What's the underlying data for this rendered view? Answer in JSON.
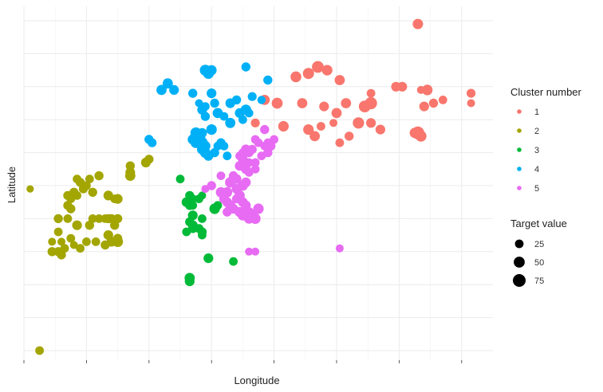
{
  "chart_data": {
    "type": "scatter",
    "xlabel": "Longitude",
    "ylabel": "Latitude",
    "xlim": [
      0,
      150
    ],
    "ylim": [
      0,
      100
    ],
    "x_ticks": [
      0,
      20,
      40,
      60,
      80,
      100,
      120,
      140
    ],
    "y_ticks": [
      0,
      10,
      20,
      30,
      40,
      50,
      60,
      70,
      80,
      90,
      100
    ],
    "grid": true,
    "show_tick_labels": false,
    "legend_placement": "right",
    "legend_color_title": "Cluster number",
    "legend_size_title": "Target value",
    "size_legend": [
      {
        "label": "25",
        "value": 25
      },
      {
        "label": "50",
        "value": 50
      },
      {
        "label": "75",
        "value": 75
      }
    ],
    "series": [
      {
        "name": "1",
        "color": "#F8766D",
        "points": [
          [
            126,
            99,
            42
          ],
          [
            87,
            83,
            48
          ],
          [
            91,
            84,
            52
          ],
          [
            97,
            85,
            45
          ],
          [
            94,
            86,
            60
          ],
          [
            101,
            82,
            40
          ],
          [
            111,
            78,
            25
          ],
          [
            119,
            80,
            35
          ],
          [
            129,
            79,
            45
          ],
          [
            143,
            78,
            28
          ],
          [
            134,
            76,
            25
          ],
          [
            131,
            75,
            30
          ],
          [
            128,
            74,
            35
          ],
          [
            111,
            75,
            65
          ],
          [
            103,
            75,
            40
          ],
          [
            96,
            74,
            35
          ],
          [
            89,
            75,
            40
          ],
          [
            81,
            75,
            50
          ],
          [
            100,
            72,
            40
          ],
          [
            107,
            69,
            55
          ],
          [
            111,
            69,
            35
          ],
          [
            99,
            69,
            20
          ],
          [
            95,
            68,
            25
          ],
          [
            91,
            67,
            45
          ],
          [
            114,
            67,
            35
          ],
          [
            125,
            66,
            40
          ],
          [
            126,
            66,
            75
          ],
          [
            127,
            65,
            50
          ],
          [
            104,
            65,
            30
          ],
          [
            93,
            65,
            40
          ],
          [
            83,
            68,
            45
          ],
          [
            77,
            76,
            40
          ],
          [
            74,
            69,
            28
          ],
          [
            121,
            80,
            35
          ],
          [
            127,
            79,
            20
          ],
          [
            143,
            75,
            20
          ],
          [
            101,
            63,
            25
          ],
          [
            109,
            74,
            60
          ]
        ]
      },
      {
        "name": "2",
        "color": "#A3A500",
        "points": [
          [
            2,
            49,
            15
          ],
          [
            21,
            52,
            25
          ],
          [
            24,
            53,
            30
          ],
          [
            16,
            48,
            30
          ],
          [
            17,
            47,
            25
          ],
          [
            14,
            47,
            28
          ],
          [
            27,
            47,
            35
          ],
          [
            30,
            46,
            35
          ],
          [
            29,
            46,
            25
          ],
          [
            14,
            44,
            28
          ],
          [
            15,
            43,
            30
          ],
          [
            22,
            40,
            25
          ],
          [
            24,
            40,
            25
          ],
          [
            26,
            40,
            25
          ],
          [
            27,
            40,
            30
          ],
          [
            28,
            40,
            30
          ],
          [
            30,
            40,
            30
          ],
          [
            14,
            40,
            25
          ],
          [
            11,
            40,
            30
          ],
          [
            17,
            38,
            35
          ],
          [
            21,
            38,
            30
          ],
          [
            29,
            38,
            30
          ],
          [
            27,
            35,
            35
          ],
          [
            23,
            33,
            25
          ],
          [
            15,
            34,
            25
          ],
          [
            11,
            36,
            25
          ],
          [
            30,
            33,
            45
          ],
          [
            28,
            33,
            35
          ],
          [
            26,
            32,
            30
          ],
          [
            20,
            33,
            25
          ],
          [
            13,
            31,
            25
          ],
          [
            18,
            31,
            25
          ],
          [
            12,
            29,
            30
          ],
          [
            11,
            30,
            30
          ],
          [
            9,
            30,
            30
          ],
          [
            12,
            33,
            20
          ],
          [
            30,
            34,
            30
          ],
          [
            16,
            32,
            20
          ],
          [
            9,
            33,
            20
          ],
          [
            34,
            53,
            40
          ],
          [
            34,
            54,
            35
          ],
          [
            34,
            56,
            30
          ],
          [
            39,
            57,
            35
          ],
          [
            40,
            58,
            30
          ],
          [
            15,
            46,
            25
          ],
          [
            17,
            52,
            25
          ],
          [
            20,
            50,
            25
          ],
          [
            18,
            51,
            30
          ],
          [
            22,
            48,
            30
          ],
          [
            19,
            49,
            28
          ],
          [
            5,
            0,
            25
          ]
        ]
      },
      {
        "name": "3",
        "color": "#00BA38",
        "points": [
          [
            50,
            52,
            25
          ],
          [
            53,
            47,
            30
          ],
          [
            54,
            46,
            25
          ],
          [
            56,
            46,
            25
          ],
          [
            52,
            45,
            35
          ],
          [
            53,
            44,
            30
          ],
          [
            57,
            47,
            20
          ],
          [
            54,
            41,
            35
          ],
          [
            57,
            40,
            25
          ],
          [
            53,
            39,
            30
          ],
          [
            54,
            38,
            35
          ],
          [
            56,
            37,
            28
          ],
          [
            57,
            36,
            30
          ],
          [
            52,
            36,
            25
          ],
          [
            61,
            43,
            45
          ],
          [
            54,
            44,
            25
          ],
          [
            59,
            28,
            35
          ],
          [
            67,
            27,
            25
          ],
          [
            53,
            22,
            40
          ],
          [
            53,
            21,
            35
          ],
          [
            62,
            44,
            25
          ],
          [
            54,
            37,
            30
          ],
          [
            57,
            35,
            25
          ]
        ]
      },
      {
        "name": "4",
        "color": "#00B0F6",
        "points": [
          [
            71,
            86,
            30
          ],
          [
            58,
            85,
            50
          ],
          [
            59,
            84,
            48
          ],
          [
            60,
            85,
            40
          ],
          [
            46,
            81,
            40
          ],
          [
            44,
            79,
            40
          ],
          [
            48,
            79,
            35
          ],
          [
            54,
            78,
            30
          ],
          [
            66,
            75,
            35
          ],
          [
            68,
            76,
            30
          ],
          [
            73,
            77,
            28
          ],
          [
            76,
            76,
            22
          ],
          [
            60,
            78,
            35
          ],
          [
            58,
            74,
            25
          ],
          [
            57,
            73,
            35
          ],
          [
            61,
            75,
            30
          ],
          [
            71,
            73,
            45
          ],
          [
            69,
            72,
            35
          ],
          [
            62,
            72,
            40
          ],
          [
            64,
            71,
            25
          ],
          [
            58,
            71,
            30
          ],
          [
            56,
            75,
            20
          ],
          [
            66,
            69,
            40
          ],
          [
            60,
            67,
            45
          ],
          [
            57,
            66,
            35
          ],
          [
            55,
            66,
            50
          ],
          [
            56,
            65,
            75
          ],
          [
            57,
            63,
            55
          ],
          [
            55,
            63,
            45
          ],
          [
            54,
            64,
            40
          ],
          [
            57,
            61,
            40
          ],
          [
            58,
            60,
            45
          ],
          [
            63,
            63,
            30
          ],
          [
            62,
            62,
            25
          ],
          [
            64,
            62,
            25
          ],
          [
            59,
            59,
            35
          ],
          [
            41,
            63,
            28
          ],
          [
            40,
            64,
            30
          ],
          [
            65,
            59,
            25
          ],
          [
            72,
            72,
            25
          ],
          [
            78,
            82,
            30
          ],
          [
            58,
            62,
            40
          ],
          [
            61,
            60,
            30
          ],
          [
            70,
            70,
            25
          ]
        ]
      },
      {
        "name": "5",
        "color": "#E76BF3",
        "points": [
          [
            77,
            67,
            30
          ],
          [
            77,
            62,
            25
          ],
          [
            73,
            61,
            30
          ],
          [
            71,
            61,
            35
          ],
          [
            70,
            60,
            25
          ],
          [
            70,
            58,
            35
          ],
          [
            69,
            56,
            35
          ],
          [
            71,
            55,
            35
          ],
          [
            72,
            54,
            25
          ],
          [
            76,
            59,
            25
          ],
          [
            74,
            57,
            25
          ],
          [
            72,
            57,
            25
          ],
          [
            67,
            53,
            30
          ],
          [
            66,
            51,
            45
          ],
          [
            65,
            48,
            40
          ],
          [
            68,
            52,
            35
          ],
          [
            70,
            50,
            40
          ],
          [
            71,
            51,
            35
          ],
          [
            68,
            49,
            35
          ],
          [
            63,
            48,
            40
          ],
          [
            64,
            46,
            35
          ],
          [
            69,
            47,
            40
          ],
          [
            66,
            44,
            40
          ],
          [
            67,
            43,
            35
          ],
          [
            70,
            45,
            35
          ],
          [
            71,
            44,
            35
          ],
          [
            72,
            42,
            35
          ],
          [
            73,
            41,
            45
          ],
          [
            74,
            40,
            45
          ],
          [
            72,
            40,
            40
          ],
          [
            70,
            41,
            40
          ],
          [
            69,
            42,
            40
          ],
          [
            79,
            62,
            30
          ],
          [
            78,
            60,
            30
          ],
          [
            72,
            60,
            30
          ],
          [
            74,
            55,
            25
          ],
          [
            63,
            53,
            25
          ],
          [
            60,
            50,
            30
          ],
          [
            65,
            42,
            30
          ],
          [
            80,
            64,
            25
          ],
          [
            75,
            63,
            25
          ],
          [
            74,
            64,
            25
          ],
          [
            78,
            63,
            25
          ],
          [
            72,
            30,
            20
          ],
          [
            74,
            30,
            20
          ],
          [
            101,
            31,
            20
          ],
          [
            75,
            43,
            45
          ],
          [
            68,
            46,
            30
          ],
          [
            65,
            45,
            35
          ],
          [
            58,
            49,
            20
          ],
          [
            70,
            56,
            25
          ],
          [
            69,
            59,
            25
          ]
        ]
      }
    ]
  }
}
